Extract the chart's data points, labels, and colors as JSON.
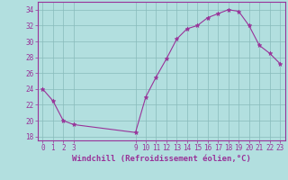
{
  "x": [
    0,
    1,
    2,
    3,
    9,
    10,
    11,
    12,
    13,
    14,
    15,
    16,
    17,
    18,
    19,
    20,
    21,
    22,
    23
  ],
  "y": [
    24,
    22.5,
    20,
    19.5,
    18.5,
    23,
    25.5,
    27.8,
    30.3,
    31.6,
    32.0,
    33.0,
    33.5,
    34.0,
    33.8,
    32.0,
    29.5,
    28.5,
    27.2
  ],
  "line_color": "#993399",
  "marker": "*",
  "marker_color": "#993399",
  "marker_size": 3.5,
  "bg_color": "#b2dfdf",
  "grid_color": "#88bbbb",
  "xlabel": "Windchill (Refroidissement éolien,°C)",
  "xlabel_color": "#993399",
  "tick_color": "#993399",
  "ylim": [
    17.5,
    35
  ],
  "yticks": [
    18,
    20,
    22,
    24,
    26,
    28,
    30,
    32,
    34
  ],
  "xticks": [
    0,
    1,
    2,
    3,
    9,
    10,
    11,
    12,
    13,
    14,
    15,
    16,
    17,
    18,
    19,
    20,
    21,
    22,
    23
  ],
  "xlim": [
    -0.5,
    23.5
  ],
  "spine_color": "#993399",
  "tick_fontsize": 5.5,
  "xlabel_fontsize": 6.5
}
